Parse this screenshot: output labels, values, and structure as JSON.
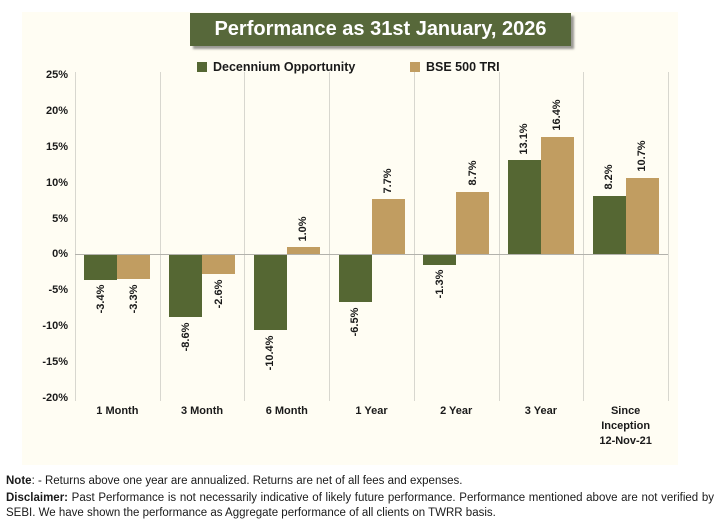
{
  "title": "Performance as 31st January, 2026",
  "legend": [
    {
      "label": "Decennium Opportunity",
      "color": "#556733"
    },
    {
      "label": "BSE 500 TRI",
      "color": "#C19D61"
    }
  ],
  "chart_data": {
    "type": "bar",
    "title": "Performance as 31st January, 2026",
    "categories": [
      "1 Month",
      "3 Month",
      "6 Month",
      "1 Year",
      "2 Year",
      "3 Year",
      "Since\nInception\n12-Nov-21"
    ],
    "series": [
      {
        "name": "Decennium Opportunity",
        "color": "#556733",
        "values": [
          -3.4,
          -8.6,
          -10.4,
          -6.5,
          -1.3,
          13.1,
          8.2
        ],
        "labels": [
          "-3.4%",
          "-8.6%",
          "-10.4%",
          "-6.5%",
          "-1.3%",
          "13.1%",
          "8.2%"
        ]
      },
      {
        "name": "BSE 500 TRI",
        "color": "#C19D61",
        "values": [
          -3.3,
          -2.6,
          1.0,
          7.7,
          8.7,
          16.4,
          10.7
        ],
        "labels": [
          "-3.3%",
          "-2.6%",
          "1.0%",
          "7.7%",
          "8.7%",
          "16.4%",
          "10.7%"
        ]
      }
    ],
    "ylim": [
      -20,
      25
    ],
    "yticks": [
      {
        "value": 25,
        "label": "25%"
      },
      {
        "value": 20,
        "label": "20%"
      },
      {
        "value": 15,
        "label": "15%"
      },
      {
        "value": 10,
        "label": "10%"
      },
      {
        "value": 5,
        "label": "5%"
      },
      {
        "value": 0,
        "label": "0%"
      },
      {
        "value": -5,
        "label": "-5%"
      },
      {
        "value": -10,
        "label": "-10%"
      },
      {
        "value": -15,
        "label": "-15%"
      },
      {
        "value": -20,
        "label": "-20%"
      }
    ],
    "grid": {
      "vertical_category_lines": true,
      "horizontal_lines": false,
      "zero_line": true
    },
    "legend_position": "top",
    "xlabel": "",
    "ylabel": ""
  },
  "footnotes": {
    "note_label": "Note",
    "note_text": ": - Returns above one year are annualized. Returns are net of all fees and expenses.",
    "disclaimer_label": "Disclaimer:",
    "disclaimer_text": " Past Performance is not necessarily indicative of likely future performance. Performance mentioned above are not verified by SEBI. We have shown the performance as Aggregate performance of all clients on TWRR basis."
  },
  "colors": {
    "title_bg": "#57683A",
    "panel_bg": "#FFFDF3",
    "page_bg": "#FFFFFF",
    "grid_line": "#D8D7CF",
    "zero_line": "#B3B2AC",
    "text": "#1A1A1A"
  }
}
